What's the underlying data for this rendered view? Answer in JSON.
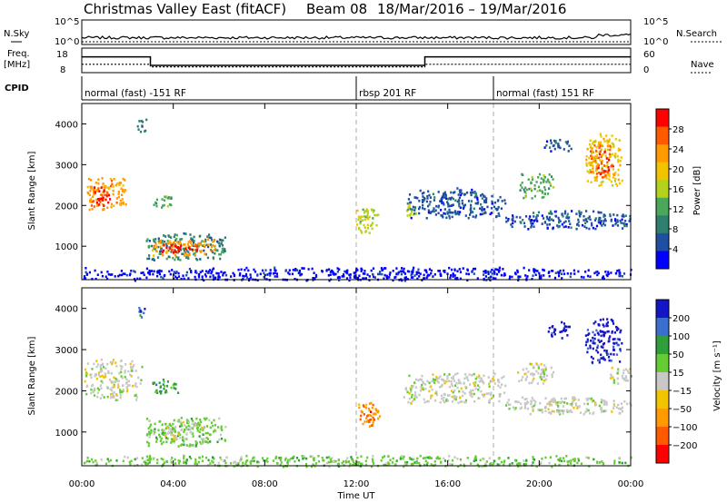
{
  "chart_data": {
    "type": "heatmap",
    "title_left": "Christmas Valley East (fitACF)",
    "title_beam": "Beam 08",
    "title_dates": "18/Mar/2016 – 19/Mar/2016",
    "xlabel": "Time UT",
    "x_ticks": [
      "00:00",
      "04:00",
      "08:00",
      "12:00",
      "16:00",
      "20:00",
      "00:00"
    ],
    "x_range_hours": [
      0,
      24
    ],
    "dashed_lines_hours": [
      12,
      18
    ],
    "header": {
      "nsky_label": "N.Sky",
      "nsearch_label": "N.Search",
      "nsky_ticks": [
        "10^5",
        "10^0"
      ],
      "nsearch_ticks": [
        "10^5",
        "10^0"
      ],
      "freq_label_1": "Freq.",
      "freq_label_2": "[MHz]",
      "freq_ticks": [
        "18",
        "8"
      ],
      "nave_label": "Nave",
      "nave_ticks": [
        "60",
        "0"
      ],
      "cpid_label": "CPID",
      "freq_mhz": [
        {
          "x": [
            0,
            3
          ],
          "y": 15.2
        },
        {
          "x": [
            3,
            15
          ],
          "y": 10.5
        },
        {
          "x": [
            15,
            24
          ],
          "y": 15.2
        }
      ],
      "nave_level": [
        {
          "x": [
            0,
            3
          ],
          "y": 23
        },
        {
          "x": [
            3,
            15
          ],
          "y": 16
        },
        {
          "x": [
            15,
            24
          ],
          "y": 23
        }
      ],
      "cpid_segments": [
        {
          "start": 0,
          "end": 12,
          "label": "normal (fast) -151 RF"
        },
        {
          "start": 12,
          "end": 18,
          "label": "rbsp 201 RF"
        },
        {
          "start": 18,
          "end": 24,
          "label": "normal (fast) 151 RF"
        }
      ]
    },
    "panels": [
      {
        "name": "power",
        "ylabel": "Slant Range [km]",
        "y_ticks": [
          "4000",
          "3000",
          "2000",
          "1000"
        ],
        "ylim_km": [
          180,
          4500
        ],
        "colorbar_label": "Power [dB]",
        "colorbar_ticks": [
          "28",
          "24",
          "20",
          "16",
          "12",
          "8",
          "4"
        ],
        "colorbar_colors": [
          "#ff0000",
          "#ff5a00",
          "#ff9a00",
          "#f2c400",
          "#b5d21a",
          "#4aa85a",
          "#2e7f6e",
          "#1f4fa0",
          "#0000ff"
        ],
        "regions": [
          {
            "x": [
              0.1,
              1.9
            ],
            "y": [
              1900,
              2700
            ],
            "c": 2
          },
          {
            "x": [
              0.5,
              1.2
            ],
            "y": [
              2000,
              2500
            ],
            "c": 0
          },
          {
            "x": [
              2.4,
              2.8
            ],
            "y": [
              3800,
              4150
            ],
            "c": 6
          },
          {
            "x": [
              2.8,
              6.3
            ],
            "y": [
              680,
              1350
            ],
            "c": 6
          },
          {
            "x": [
              3.0,
              5.8
            ],
            "y": [
              780,
              1200
            ],
            "c": 2
          },
          {
            "x": [
              3.4,
              5.1
            ],
            "y": [
              860,
              1100
            ],
            "c": 0
          },
          {
            "x": [
              3.0,
              4.0
            ],
            "y": [
              1950,
              2250
            ],
            "c": 5
          },
          {
            "x": [
              12.0,
              13.0
            ],
            "y": [
              1300,
              1950
            ],
            "c": 4
          },
          {
            "x": [
              14.1,
              14.6
            ],
            "y": [
              1750,
              2050
            ],
            "c": 4
          },
          {
            "x": [
              14.2,
              18.5
            ],
            "y": [
              1700,
              2450
            ],
            "c": 7
          },
          {
            "x": [
              18.5,
              24.0
            ],
            "y": [
              1450,
              1900
            ],
            "c": 7
          },
          {
            "x": [
              19.0,
              20.6
            ],
            "y": [
              2200,
              2800
            ],
            "c": 5
          },
          {
            "x": [
              20.2,
              21.4
            ],
            "y": [
              3300,
              3650
            ],
            "c": 7
          },
          {
            "x": [
              22.0,
              23.6
            ],
            "y": [
              2500,
              3800
            ],
            "c": 3
          },
          {
            "x": [
              22.2,
              23.2
            ],
            "y": [
              2700,
              3500
            ],
            "c": 1
          },
          {
            "x": [
              23.2,
              24.0
            ],
            "y": [
              1500,
              1700
            ],
            "c": 7
          },
          {
            "x": [
              0.0,
              24.0
            ],
            "y": [
              180,
              500
            ],
            "c": 8
          }
        ]
      },
      {
        "name": "velocity",
        "ylabel": "Slant Range [km]",
        "y_ticks": [
          "4000",
          "3000",
          "2000",
          "1000"
        ],
        "ylim_km": [
          180,
          4500
        ],
        "colorbar_label": "Velocity [m s⁻¹]",
        "colorbar_ticks": [
          "200",
          "100",
          "50",
          "15",
          "−15",
          "−50",
          "−100",
          "−200"
        ],
        "colorbar_colors": [
          "#1515c8",
          "#3a6fd0",
          "#2e9f3a",
          "#66cc33",
          "#c8c8c8",
          "#f2c400",
          "#ff9a00",
          "#ff5a00",
          "#ff0000"
        ],
        "regions": [
          {
            "x": [
              0.1,
              2.6
            ],
            "y": [
              1800,
              2800
            ],
            "c": 4
          },
          {
            "x": [
              2.4,
              2.8
            ],
            "y": [
              3800,
              4100
            ],
            "c": 1
          },
          {
            "x": [
              2.8,
              6.3
            ],
            "y": [
              680,
              1400
            ],
            "c": 3
          },
          {
            "x": [
              3.4,
              5.3
            ],
            "y": [
              850,
              1300
            ],
            "c": 4
          },
          {
            "x": [
              3.0,
              4.2
            ],
            "y": [
              1950,
              2300
            ],
            "c": 2
          },
          {
            "x": [
              12.0,
              13.0
            ],
            "y": [
              1150,
              1750
            ],
            "c": 6
          },
          {
            "x": [
              12.3,
              12.8
            ],
            "y": [
              1250,
              1550
            ],
            "c": 7
          },
          {
            "x": [
              14.0,
              14.6
            ],
            "y": [
              1800,
              2100
            ],
            "c": 4
          },
          {
            "x": [
              14.2,
              18.5
            ],
            "y": [
              1700,
              2450
            ],
            "c": 4
          },
          {
            "x": [
              18.5,
              24.0
            ],
            "y": [
              1450,
              1900
            ],
            "c": 4
          },
          {
            "x": [
              19.0,
              20.6
            ],
            "y": [
              2200,
              2700
            ],
            "c": 4
          },
          {
            "x": [
              20.3,
              21.3
            ],
            "y": [
              3300,
              3700
            ],
            "c": 0
          },
          {
            "x": [
              22.0,
              23.6
            ],
            "y": [
              2700,
              3800
            ],
            "c": 0
          },
          {
            "x": [
              23.0,
              24.0
            ],
            "y": [
              2200,
              2600
            ],
            "c": 4
          },
          {
            "x": [
              0.0,
              24.0
            ],
            "y": [
              180,
              450
            ],
            "c": 3
          }
        ]
      }
    ]
  }
}
